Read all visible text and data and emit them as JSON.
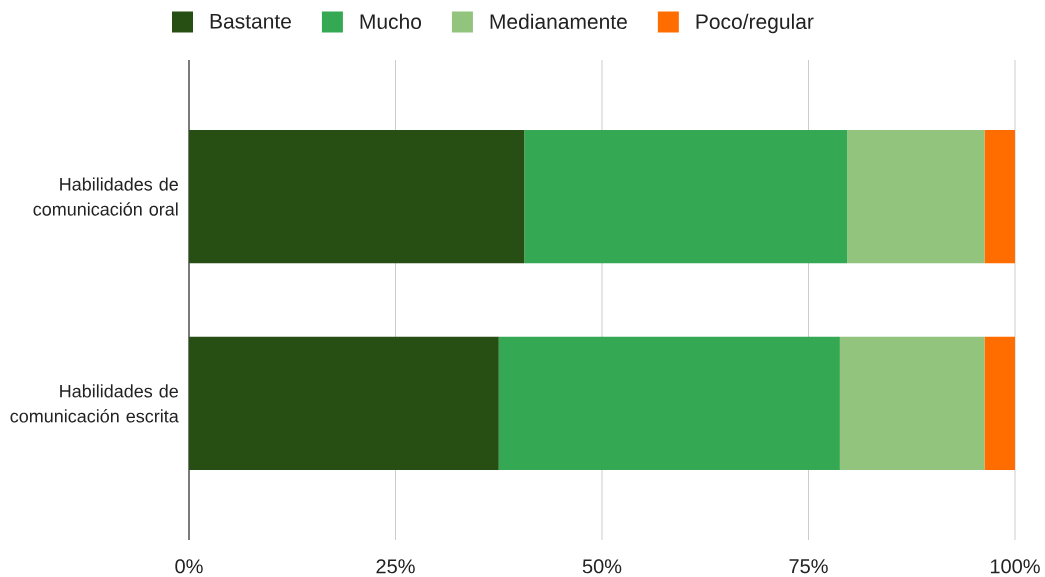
{
  "chart_data": {
    "type": "bar",
    "orientation": "horizontal",
    "stacked": true,
    "categories": [
      "Habilidades de comunicación oral",
      "Habilidades de comunicación escrita"
    ],
    "series": [
      {
        "name": "Bastante",
        "color": "#274e13",
        "values": [
          40.6,
          37.5
        ]
      },
      {
        "name": "Mucho",
        "color": "#34a853",
        "values": [
          39.1,
          41.3
        ]
      },
      {
        "name": "Medianamente",
        "color": "#93c47d",
        "values": [
          16.6,
          17.5
        ]
      },
      {
        "name": "Poco/regular",
        "color": "#ff6d01",
        "values": [
          3.7,
          3.7
        ]
      }
    ],
    "xlim": [
      0,
      100
    ],
    "xticks": [
      {
        "value": 0,
        "label": "0%"
      },
      {
        "value": 25,
        "label": "25%"
      },
      {
        "value": 50,
        "label": "50%"
      },
      {
        "value": 75,
        "label": "75%"
      },
      {
        "value": 100,
        "label": "100%"
      }
    ],
    "grid": "x",
    "legend": "top"
  }
}
